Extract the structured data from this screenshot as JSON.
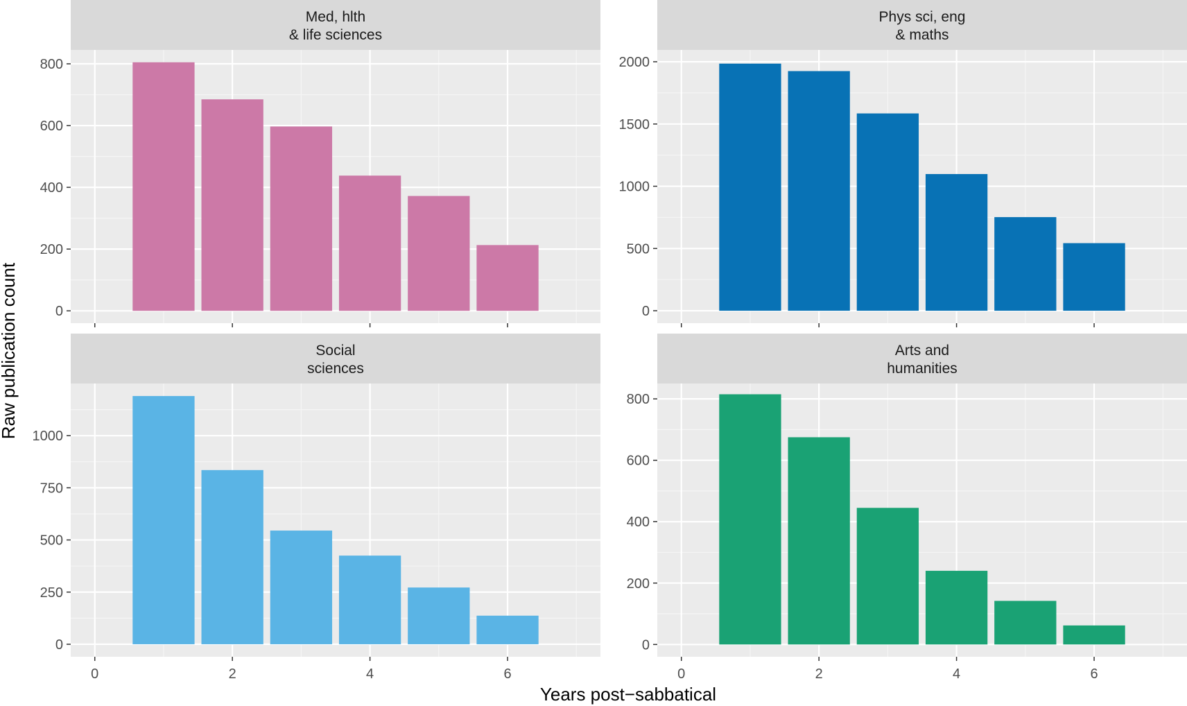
{
  "chart_data": {
    "type": "bar",
    "xlabel": "Years post−sabbatical",
    "ylabel": "Raw publication count",
    "x_ticks": [
      0,
      2,
      4,
      6
    ],
    "xlim": [
      -0.35,
      7.35
    ],
    "grid": true,
    "panels": [
      {
        "title_lines": [
          "Med, hlth",
          "& life sciences"
        ],
        "color": "#CC79A7",
        "x": [
          1,
          2,
          3,
          4,
          5,
          6
        ],
        "values": [
          805,
          685,
          597,
          438,
          372,
          213
        ],
        "ylim": [
          -40,
          845
        ],
        "y_ticks": [
          0,
          200,
          400,
          600,
          800
        ]
      },
      {
        "title_lines": [
          "Phys sci, eng",
          "& maths"
        ],
        "color": "#0872B5",
        "x": [
          1,
          2,
          3,
          4,
          5,
          6
        ],
        "values": [
          1985,
          1925,
          1585,
          1098,
          752,
          543
        ],
        "ylim": [
          -100,
          2095
        ],
        "y_ticks": [
          0,
          500,
          1000,
          1500,
          2000
        ]
      },
      {
        "title_lines": [
          "Social",
          "sciences"
        ],
        "color": "#5AB4E5",
        "x": [
          1,
          2,
          3,
          4,
          5,
          6
        ],
        "values": [
          1190,
          835,
          545,
          425,
          272,
          137
        ],
        "ylim": [
          -60,
          1250
        ],
        "y_ticks": [
          0,
          250,
          500,
          750,
          1000
        ]
      },
      {
        "title_lines": [
          "Arts and",
          "humanities"
        ],
        "color": "#1AA274",
        "x": [
          1,
          2,
          3,
          4,
          5,
          6
        ],
        "values": [
          815,
          675,
          445,
          240,
          142,
          62
        ],
        "ylim": [
          -40,
          850
        ],
        "y_ticks": [
          0,
          200,
          400,
          600,
          800
        ]
      }
    ]
  }
}
